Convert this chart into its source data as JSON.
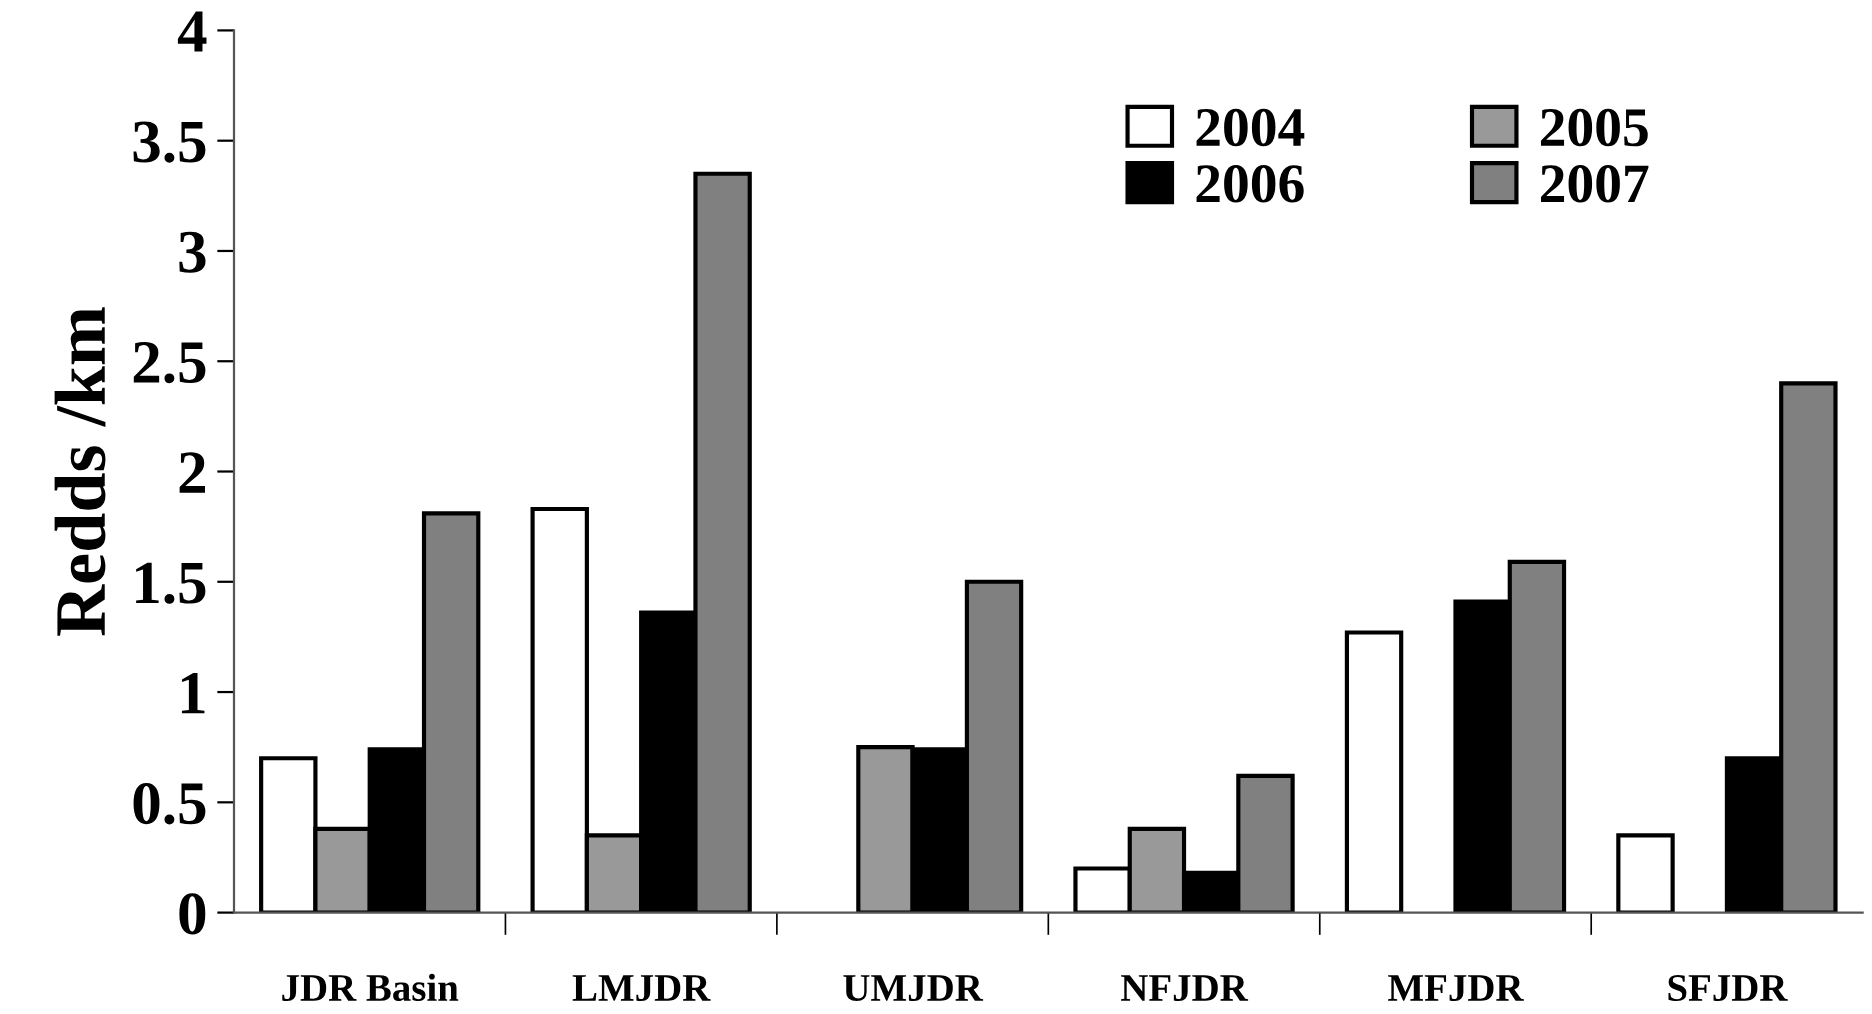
{
  "chart_data": {
    "type": "bar",
    "ylabel": "Redds /km",
    "categories": [
      "JDR Basin",
      "LMJDR",
      "UMJDR",
      "NFJDR",
      "MFJDR",
      "SFJDR"
    ],
    "series": [
      {
        "name": "2004",
        "color": "#ffffff",
        "values": [
          0.7,
          1.83,
          null,
          0.2,
          1.27,
          0.35
        ]
      },
      {
        "name": "2005",
        "color": "#999999",
        "values": [
          0.38,
          0.35,
          0.75,
          0.38,
          null,
          null
        ]
      },
      {
        "name": "2006",
        "color": "#000000",
        "values": [
          0.74,
          1.36,
          0.74,
          0.18,
          1.41,
          0.7
        ]
      },
      {
        "name": "2007",
        "color": "#808080",
        "values": [
          1.81,
          3.35,
          1.5,
          0.62,
          1.59,
          2.4
        ]
      }
    ],
    "ylim": [
      0,
      4
    ],
    "yticks": [
      0,
      0.5,
      1,
      1.5,
      2,
      2.5,
      3,
      3.5,
      4
    ],
    "grid": false,
    "legend": "top right"
  }
}
